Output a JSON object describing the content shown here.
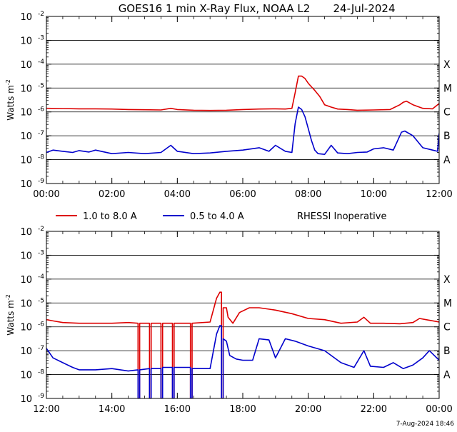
{
  "title": "GOES16 1 min X-Ray Flux, NOAA L2",
  "date": "24-Jul-2024",
  "footer": "7-Aug-2024 18:46",
  "legend": [
    {
      "label": "1.0 to 8.0 A",
      "color": "#dd0000"
    },
    {
      "label": "0.5 to 4.0 A",
      "color": "#0000cc"
    }
  ],
  "status_text": "RHESSI Inoperative",
  "colors": {
    "long_channel": "#dd0000",
    "short_channel": "#0000cc",
    "gridline": "#000000",
    "axis": "#000000"
  },
  "chart_data": [
    {
      "type": "line",
      "title": "GOES16 1 min X-Ray Flux, NOAA L2 24-Jul-2024",
      "ylabel": "Watts m^-2",
      "yscale": "log",
      "ylim_exp": [
        -9,
        -2
      ],
      "y_tick_labels": [
        "10",
        "10",
        "10",
        "10",
        "10",
        "10",
        "10",
        "10"
      ],
      "y_tick_exponents": [
        "-2",
        "-3",
        "-4",
        "-5",
        "-6",
        "-7",
        "-8",
        "-9"
      ],
      "class_labels": [
        {
          "label": "X",
          "exp": -4
        },
        {
          "label": "M",
          "exp": -5
        },
        {
          "label": "C",
          "exp": -6
        },
        {
          "label": "B",
          "exp": -7
        },
        {
          "label": "A",
          "exp": -8
        }
      ],
      "xlim_hours": [
        0,
        12
      ],
      "x_ticks": [
        {
          "label": "00:00",
          "hour": 0
        },
        {
          "label": "02:00",
          "hour": 2
        },
        {
          "label": "04:00",
          "hour": 4
        },
        {
          "label": "06:00",
          "hour": 6
        },
        {
          "label": "08:00",
          "hour": 8
        },
        {
          "label": "10:00",
          "hour": 10
        },
        {
          "label": "12:00",
          "hour": 12
        }
      ],
      "series": [
        {
          "name": "1.0 to 8.0 A",
          "color": "#dd0000",
          "hours": [
            0,
            0.5,
            1,
            1.5,
            2,
            2.5,
            3,
            3.5,
            3.8,
            4,
            4.5,
            5,
            5.5,
            6,
            6.5,
            7,
            7.3,
            7.5,
            7.6,
            7.7,
            7.8,
            7.9,
            8.0,
            8.1,
            8.2,
            8.35,
            8.5,
            8.7,
            8.9,
            9.2,
            9.5,
            10.0,
            10.5,
            10.8,
            10.9,
            11.0,
            11.2,
            11.5,
            11.8,
            12.0
          ],
          "log_values": [
            -5.85,
            -5.86,
            -5.87,
            -5.87,
            -5.88,
            -5.9,
            -5.91,
            -5.92,
            -5.85,
            -5.9,
            -5.93,
            -5.94,
            -5.93,
            -5.9,
            -5.88,
            -5.87,
            -5.88,
            -5.85,
            -5.2,
            -4.5,
            -4.5,
            -4.6,
            -4.8,
            -4.95,
            -5.1,
            -5.35,
            -5.7,
            -5.8,
            -5.88,
            -5.9,
            -5.93,
            -5.92,
            -5.9,
            -5.7,
            -5.6,
            -5.55,
            -5.7,
            -5.85,
            -5.87,
            -5.65
          ]
        },
        {
          "name": "0.5 to 4.0 A",
          "color": "#0000cc",
          "hours": [
            0,
            0.2,
            0.5,
            0.8,
            1,
            1.3,
            1.5,
            2,
            2.5,
            3,
            3.5,
            3.8,
            4,
            4.5,
            5,
            5.5,
            6,
            6.5,
            6.8,
            7.0,
            7.3,
            7.5,
            7.6,
            7.7,
            7.8,
            7.9,
            8.0,
            8.1,
            8.2,
            8.3,
            8.5,
            8.7,
            8.9,
            9.2,
            9.5,
            9.8,
            10,
            10.3,
            10.6,
            10.85,
            10.95,
            11.2,
            11.5,
            11.8,
            11.95,
            12.0
          ],
          "log_values": [
            -7.7,
            -7.6,
            -7.65,
            -7.7,
            -7.62,
            -7.68,
            -7.6,
            -7.75,
            -7.7,
            -7.75,
            -7.7,
            -7.4,
            -7.65,
            -7.75,
            -7.72,
            -7.65,
            -7.6,
            -7.5,
            -7.65,
            -7.4,
            -7.65,
            -7.7,
            -6.5,
            -5.8,
            -5.9,
            -6.2,
            -6.7,
            -7.2,
            -7.6,
            -7.75,
            -7.78,
            -7.4,
            -7.72,
            -7.75,
            -7.7,
            -7.68,
            -7.55,
            -7.5,
            -7.6,
            -6.85,
            -6.8,
            -7.0,
            -7.5,
            -7.6,
            -7.65,
            -6.9
          ]
        }
      ]
    },
    {
      "type": "line",
      "ylabel": "Watts m^-2",
      "yscale": "log",
      "ylim_exp": [
        -9,
        -2
      ],
      "y_tick_labels": [
        "10",
        "10",
        "10",
        "10",
        "10",
        "10",
        "10",
        "10"
      ],
      "y_tick_exponents": [
        "-2",
        "-3",
        "-4",
        "-5",
        "-6",
        "-7",
        "-8",
        "-9"
      ],
      "class_labels": [
        {
          "label": "X",
          "exp": -4
        },
        {
          "label": "M",
          "exp": -5
        },
        {
          "label": "C",
          "exp": -6
        },
        {
          "label": "B",
          "exp": -7
        },
        {
          "label": "A",
          "exp": -8
        }
      ],
      "xlim_hours": [
        12,
        24
      ],
      "x_ticks": [
        {
          "label": "12:00",
          "hour": 12
        },
        {
          "label": "14:00",
          "hour": 14
        },
        {
          "label": "16:00",
          "hour": 16
        },
        {
          "label": "18:00",
          "hour": 18
        },
        {
          "label": "20:00",
          "hour": 20
        },
        {
          "label": "22:00",
          "hour": 22
        },
        {
          "label": "00:00",
          "hour": 24
        }
      ],
      "series": [
        {
          "name": "1.0 to 8.0 A",
          "color": "#dd0000",
          "hours": [
            12,
            12.2,
            12.5,
            13,
            13.5,
            14,
            14.5,
            14.8,
            14.8,
            14.85,
            14.85,
            15.15,
            15.15,
            15.2,
            15.2,
            15.5,
            15.5,
            15.55,
            15.55,
            15.85,
            15.85,
            15.9,
            15.9,
            16.4,
            16.4,
            16.45,
            16.45,
            17.0,
            17.2,
            17.3,
            17.35,
            17.35,
            17.4,
            17.4,
            17.5,
            17.55,
            17.7,
            17.9,
            18.2,
            18.5,
            19.0,
            19.5,
            20.0,
            20.5,
            21.0,
            21.5,
            21.7,
            21.9,
            22.3,
            22.8,
            23.2,
            23.4,
            23.6,
            24.0
          ],
          "log_values": [
            -5.7,
            -5.75,
            -5.82,
            -5.85,
            -5.85,
            -5.85,
            -5.82,
            -5.85,
            -9.0,
            -9.0,
            -5.85,
            -5.85,
            -9.0,
            -9.0,
            -5.85,
            -5.85,
            -9.0,
            -9.0,
            -5.85,
            -5.85,
            -9.0,
            -9.0,
            -5.85,
            -5.85,
            -9.0,
            -9.0,
            -5.85,
            -5.8,
            -4.8,
            -4.55,
            -4.55,
            -9.0,
            -9.0,
            -5.2,
            -5.2,
            -5.6,
            -5.85,
            -5.4,
            -5.2,
            -5.2,
            -5.3,
            -5.45,
            -5.65,
            -5.7,
            -5.85,
            -5.8,
            -5.6,
            -5.85,
            -5.85,
            -5.87,
            -5.82,
            -5.65,
            -5.7,
            -5.8
          ]
        },
        {
          "name": "0.5 to 4.0 A",
          "color": "#0000cc",
          "hours": [
            12,
            12.2,
            12.5,
            12.8,
            13,
            13.5,
            14,
            14.5,
            14.8,
            14.8,
            14.85,
            14.85,
            15.15,
            15.15,
            15.2,
            15.2,
            15.5,
            15.5,
            15.55,
            15.55,
            15.85,
            15.85,
            15.9,
            15.9,
            16.4,
            16.4,
            16.45,
            16.45,
            17.0,
            17.2,
            17.3,
            17.35,
            17.35,
            17.4,
            17.4,
            17.5,
            17.6,
            17.8,
            18.0,
            18.3,
            18.5,
            18.8,
            19.0,
            19.3,
            19.6,
            20.0,
            20.5,
            21.0,
            21.4,
            21.7,
            21.9,
            22.3,
            22.6,
            22.9,
            23.2,
            23.5,
            23.7,
            24.0
          ],
          "log_values": [
            -6.9,
            -7.3,
            -7.5,
            -7.7,
            -7.8,
            -7.8,
            -7.75,
            -7.85,
            -7.8,
            -9.0,
            -9.0,
            -7.8,
            -7.75,
            -9.0,
            -9.0,
            -7.75,
            -7.75,
            -9.0,
            -9.0,
            -7.7,
            -7.7,
            -9.0,
            -9.0,
            -7.7,
            -7.7,
            -9.0,
            -9.0,
            -7.75,
            -7.75,
            -6.3,
            -5.95,
            -5.95,
            -9.0,
            -9.0,
            -6.5,
            -6.6,
            -7.2,
            -7.35,
            -7.4,
            -7.4,
            -6.5,
            -6.55,
            -7.3,
            -6.5,
            -6.6,
            -6.8,
            -7.0,
            -7.5,
            -7.7,
            -7.0,
            -7.65,
            -7.7,
            -7.5,
            -7.75,
            -7.6,
            -7.3,
            -7.0,
            -7.4
          ]
        }
      ]
    }
  ]
}
